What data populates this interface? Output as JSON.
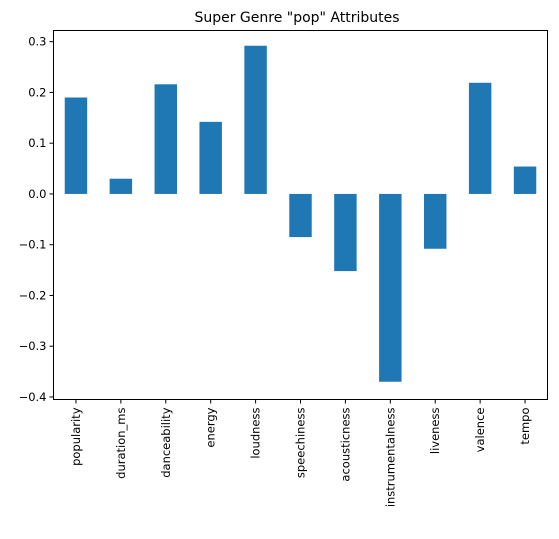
{
  "chart_data": {
    "type": "bar",
    "title": "Super Genre \"pop\" Attributes",
    "xlabel": "",
    "ylabel": "",
    "categories": [
      "popularity",
      "duration_ms",
      "danceability",
      "energy",
      "loudness",
      "speechiness",
      "acousticness",
      "instrumentalness",
      "liveness",
      "valence",
      "tempo"
    ],
    "values": [
      0.19,
      0.03,
      0.216,
      0.142,
      0.292,
      -0.085,
      -0.152,
      -0.37,
      -0.108,
      0.219,
      0.054
    ],
    "ylim": [
      -0.405,
      0.322
    ],
    "yticks": [
      0.3,
      0.2,
      0.1,
      0.0,
      -0.1,
      -0.2,
      -0.3,
      -0.4
    ],
    "ytick_labels": [
      "0.3",
      "0.2",
      "0.1",
      "0.0",
      "−0.1",
      "−0.2",
      "−0.3",
      "−0.4"
    ],
    "bar_color": "#1f77b4",
    "grid": false,
    "legend": "none"
  }
}
